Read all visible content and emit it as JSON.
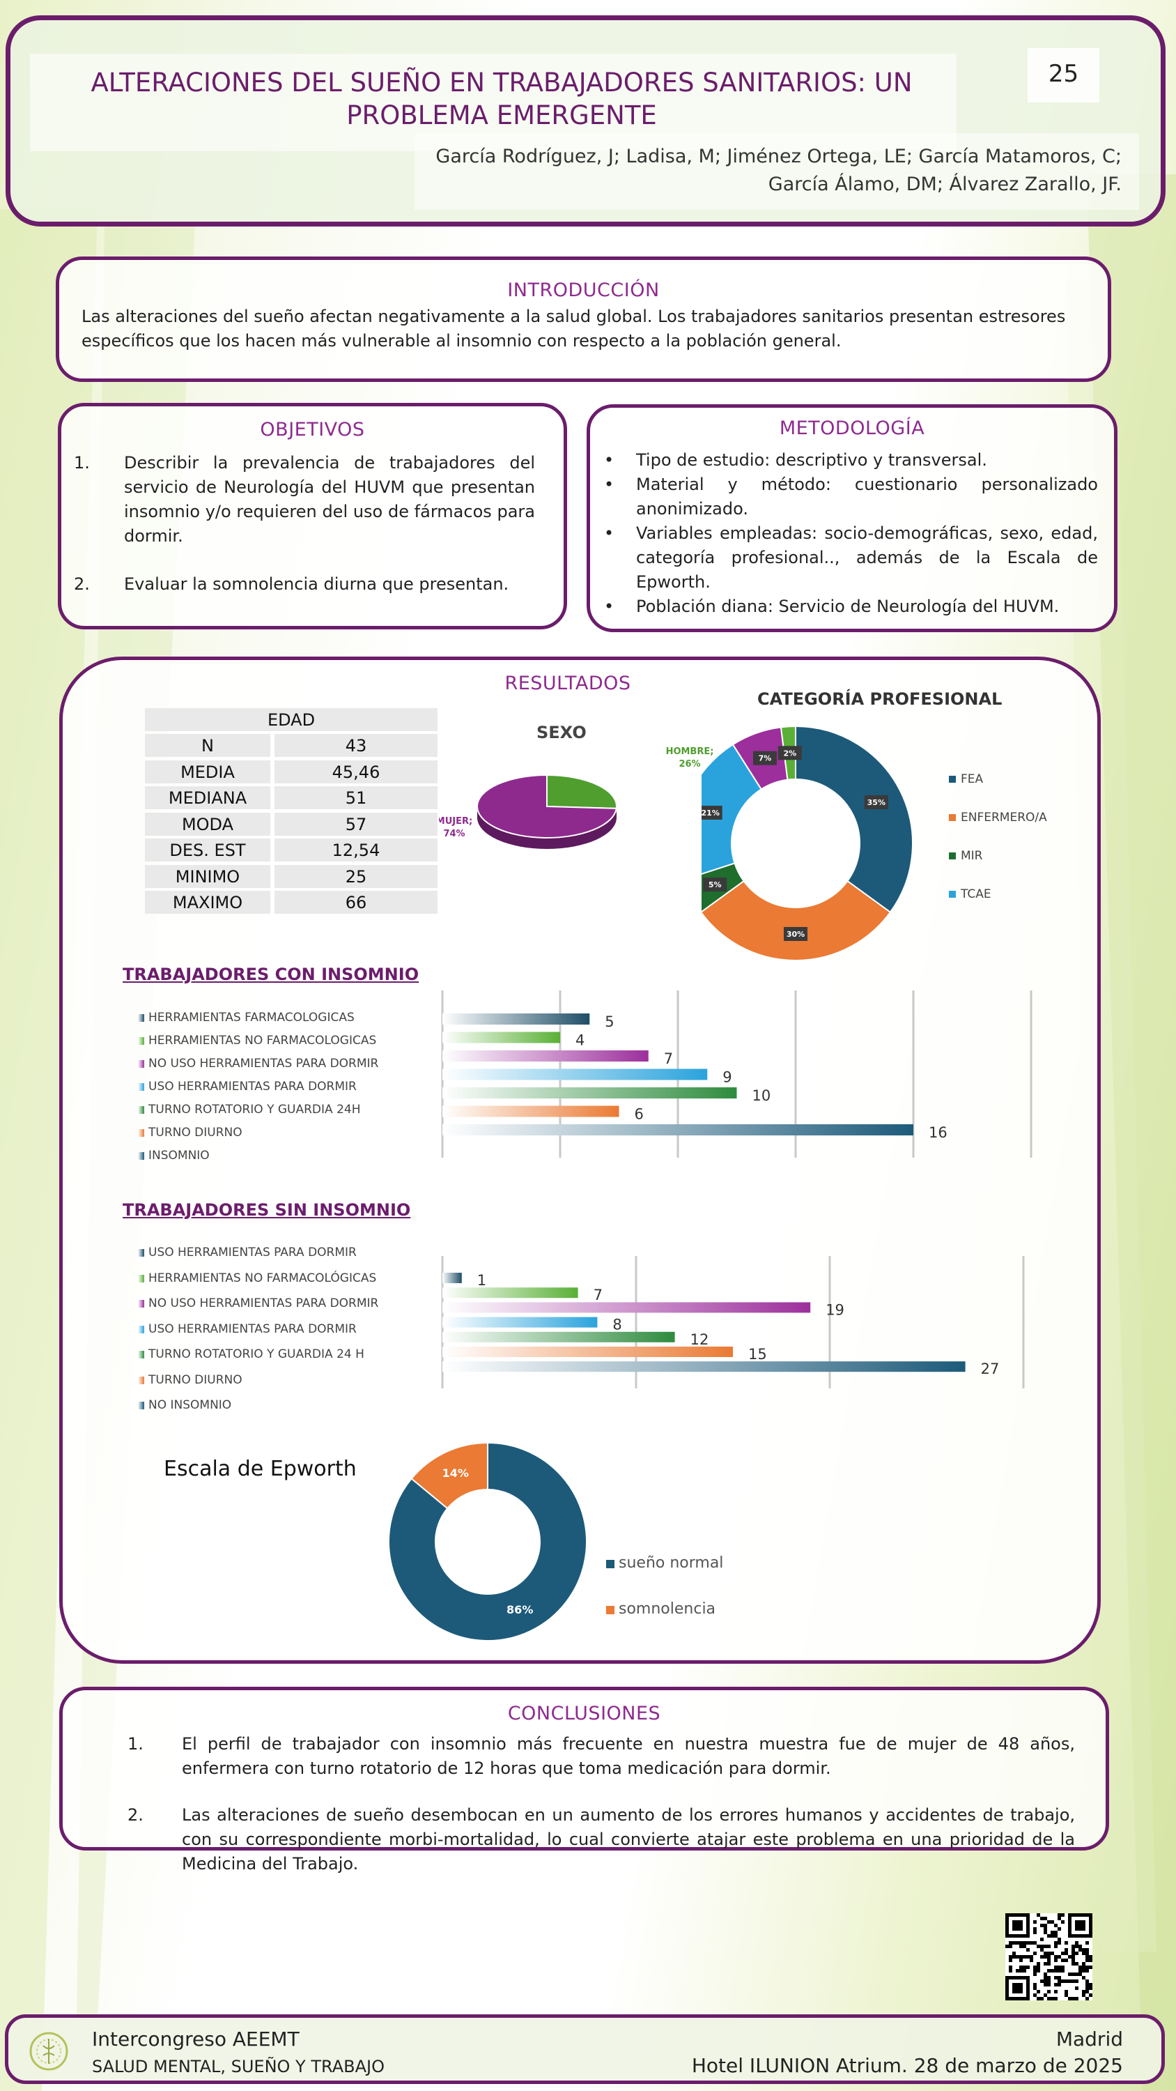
{
  "header": {
    "title_line1": "ALTERACIONES DEL SUEÑO EN TRABAJADORES SANITARIOS: UN",
    "title_line2": "PROBLEMA EMERGENTE",
    "poster_number": "25",
    "authors_line1": "García Rodríguez, J; Ladisa, M; Jiménez Ortega, LE; García Matamoros, C;",
    "authors_line2": "García Álamo, DM; Álvarez Zarallo, JF."
  },
  "introduccion": {
    "title": "INTRODUCCIÓN",
    "line1": "Las alteraciones del sueño afectan negativamente a la salud global. Los trabajadores sanitarios presentan estresores",
    "line2": "específicos que los hacen más vulnerable al insomnio con respecto a la población general."
  },
  "objetivos": {
    "title": "OBJETIVOS",
    "items": [
      {
        "num": "1.",
        "text": "Describir la prevalencia de trabajadores del servicio de Neurología del HUVM que presentan insomnio y/o requieren del uso de fármacos para dormir."
      },
      {
        "num": "2.",
        "text": "Evaluar la somnolencia diurna que presentan."
      }
    ]
  },
  "metodologia": {
    "title": "METODOLOGÍA",
    "bullet": "•",
    "items": [
      "Tipo de estudio:  descriptivo y transversal.",
      "Material y método: cuestionario personalizado anonimizado.",
      "Variables empleadas: socio-demográficas, sexo, edad, categoría profesional.., además de la Escala de Epworth.",
      "Población diana: Servicio de Neurología del HUVM."
    ]
  },
  "resultados": {
    "title": "RESULTADOS",
    "edad_table": {
      "header": "EDAD",
      "rows": [
        [
          "N",
          "43"
        ],
        [
          "MEDIA",
          "45,46"
        ],
        [
          "MEDIANA",
          "51"
        ],
        [
          "MODA",
          "57"
        ],
        [
          "DES. EST",
          "12,54"
        ],
        [
          "MINIMO",
          "25"
        ],
        [
          "MAXIMO",
          "66"
        ]
      ]
    }
  },
  "chart_data": [
    {
      "type": "pie",
      "title": "SEXO",
      "categories": [
        "HOMBRE",
        "MUJER"
      ],
      "values": [
        26,
        74
      ],
      "labels": [
        "HOMBRE;\n26%",
        "MUJER;\n74%"
      ],
      "colors": [
        "#4f9e2e",
        "#8e2a8e"
      ]
    },
    {
      "type": "pie",
      "subtype": "donut",
      "title": "CATEGORÍA PROFESIONAL",
      "categories": [
        "FEA",
        "ENFERMERO/A",
        "MIR",
        "TCAE"
      ],
      "legend_position": "right",
      "slices": [
        {
          "category": "FEA",
          "value": 35,
          "label": "35%",
          "color": "#1d5a7a"
        },
        {
          "category": "ENFERMERO/A",
          "value": 30,
          "label": "30%",
          "color": "#ea7a34"
        },
        {
          "category": "MIR",
          "value": 5,
          "label": "5%",
          "color": "#1f6e2e"
        },
        {
          "category": "TCAE",
          "value": 21,
          "label": "21%",
          "color": "#2aa3dc"
        },
        {
          "category": "",
          "value": 7,
          "label": "7%",
          "color": "#9c2f9c"
        },
        {
          "category": "",
          "value": 2,
          "label": "2%",
          "color": "#5ab036"
        }
      ]
    },
    {
      "type": "bar",
      "orientation": "horizontal",
      "title": "TRABAJADORES CON INSOMNIO",
      "categories": [
        "HERRAMIENTAS FARMACOLOGICAS",
        "HERRAMIENTAS NO FARMACOLOGICAS",
        "NO USO HERRAMIENTAS PARA DORMIR",
        "USO HERRAMIENTAS PARA DORMIR",
        "TURNO ROTATORIO Y GUARDIA 24H",
        "TURNO DIURNO",
        "INSOMNIO"
      ],
      "values": [
        5,
        4,
        7,
        9,
        10,
        6,
        16
      ],
      "colors": [
        "#1f4e66",
        "#5ab036",
        "#9c2f9c",
        "#2aa3dc",
        "#2e8b3e",
        "#ea7a34",
        "#1d5a7a"
      ],
      "xlim": [
        0,
        20
      ],
      "grid": true,
      "legend_position": "left"
    },
    {
      "type": "bar",
      "orientation": "horizontal",
      "title": "TRABAJADORES SIN INSOMNIO",
      "categories": [
        "USO HERRAMIENTAS PARA DORMIR",
        "HERRAMIENTAS NO FARMACOLÓGICAS",
        "NO USO HERRAMIENTAS PARA DORMIR",
        "USO HERRAMIENTAS PARA DORMIR",
        "TURNO ROTATORIO Y GUARDIA 24 H",
        "TURNO DIURNO",
        "NO INSOMNIO"
      ],
      "values": [
        1,
        7,
        19,
        8,
        12,
        15,
        27
      ],
      "colors": [
        "#1f4e66",
        "#5ab036",
        "#9c2f9c",
        "#2aa3dc",
        "#2e8b3e",
        "#ea7a34",
        "#1d5a7a"
      ],
      "xlim": [
        0,
        30
      ],
      "grid": true,
      "legend_position": "left"
    },
    {
      "type": "pie",
      "subtype": "donut",
      "title": "Escala de Epworth",
      "categories": [
        "sueño normal",
        "somnolencia"
      ],
      "values": [
        86,
        14
      ],
      "labels": [
        "86%",
        "14%"
      ],
      "colors": [
        "#1d5a7a",
        "#ea7a34"
      ],
      "legend_position": "right"
    }
  ],
  "conclusiones": {
    "title": "CONCLUSIONES",
    "items": [
      {
        "num": "1.",
        "text": "El perfil de trabajador con insomnio más frecuente en nuestra muestra fue de mujer de 48 años, enfermera con turno rotatorio de 12 horas que toma medicación para dormir."
      },
      {
        "num": "2.",
        "text": "Las alteraciones de sueño desembocan en un aumento de los errores humanos y accidentes de trabajo, con su correspondiente morbi-mortalidad, lo cual convierte atajar este problema en una prioridad de la Medicina del Trabajo."
      }
    ]
  },
  "footer": {
    "event": "Intercongreso AEEMT",
    "theme": "SALUD MENTAL, SUEÑO Y TRABAJO",
    "city": "Madrid",
    "venue": "Hotel ILUNION Atrium. 28 de marzo de 2025"
  },
  "colors": {
    "accent": "#6b1d6b",
    "title": "#8e2a8e",
    "teal": "#1d5a7a",
    "orange": "#ea7a34",
    "green": "#5ab036",
    "cyan": "#2aa3dc"
  }
}
